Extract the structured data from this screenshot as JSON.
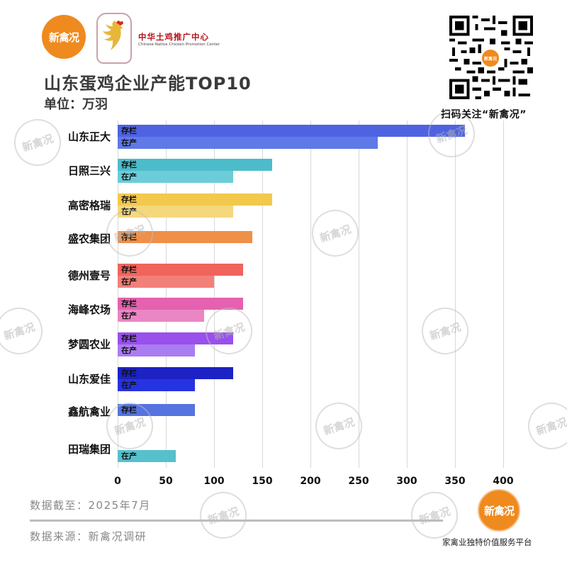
{
  "header": {
    "logo_text": "新禽况",
    "org_name_cn": "中华土鸡推广中心",
    "org_name_en": "Chinese Native Chicken Promotion Center",
    "title": "山东蛋鸡企业产能TOP10",
    "unit": "单位：万羽"
  },
  "qr": {
    "center_text": "新禽况",
    "caption": "扫码关注“新禽况”"
  },
  "watermark_text": "新禽况",
  "bar_labels": {
    "stock": "存栏",
    "producing": "在产"
  },
  "colors": {
    "山东正大": [
      "#4f63e0",
      "#5f79e8"
    ],
    "日照三兴": [
      "#4dbcca",
      "#6cccd8"
    ],
    "高密格瑞": [
      "#f2c94c",
      "#f5d87c"
    ],
    "盛农集团": [
      "#ef8f48",
      "#ef8f48"
    ],
    "德州壹号": [
      "#f0645c",
      "#f2807a"
    ],
    "海峰农场": [
      "#e462b0",
      "#ea86c4"
    ],
    "梦圆农业": [
      "#9950ec",
      "#aa7cf2"
    ],
    "山东爱佳": [
      "#1c22c4",
      "#2633e0"
    ],
    "鑫航禽业": [
      "#5574e0",
      "#5574e0"
    ],
    "田瑞集团": [
      "#56c0cc",
      "#56c0cc"
    ]
  },
  "chart_data": {
    "type": "bar",
    "orientation": "horizontal",
    "title": "山东蛋鸡企业产能TOP10",
    "subtitle": "单位：万羽",
    "xlabel": "",
    "ylabel": "",
    "xlim": [
      0,
      400
    ],
    "x_ticks": [
      "0",
      "50",
      "100",
      "150",
      "200",
      "250",
      "300",
      "350",
      "400"
    ],
    "grid": true,
    "categories": [
      "山东正大",
      "日照三兴",
      "高密格瑞",
      "盛农集团",
      "德州壹号",
      "海峰农场",
      "梦圆农业",
      "山东爱佳",
      "鑫航禽业",
      "田瑞集团"
    ],
    "series": [
      {
        "name": "存栏",
        "values": [
          360,
          160,
          160,
          140,
          130,
          130,
          120,
          120,
          80,
          null
        ]
      },
      {
        "name": "在产",
        "values": [
          270,
          120,
          120,
          null,
          100,
          90,
          80,
          80,
          null,
          60
        ]
      }
    ]
  },
  "footer": {
    "date": "数据截至：2025年7月",
    "source": "数据来源：新禽况调研",
    "brand_text": "新禽况",
    "tagline": "家禽业独特价值服务平台"
  }
}
